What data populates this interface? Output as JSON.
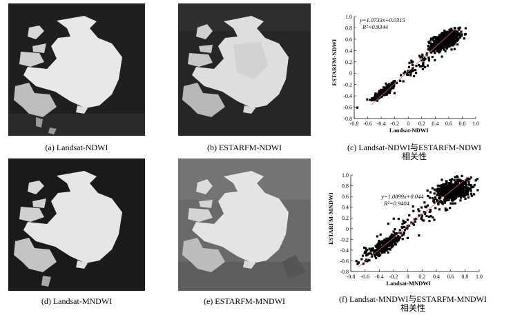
{
  "captions": {
    "a": "(a) Landsat-NDWI",
    "b": "(b) ESTARFM-NDWI",
    "c_line1": "(c) Landsat-NDWI与ESTARFM-NDWI",
    "c_line2": "相关性",
    "d": "(d) Landsat-MNDWI",
    "e": "(e) ESTARFM-MNDWI",
    "f_line1": "(f) Landsat-MNDWI与ESTARFM-MNDWI",
    "f_line2": "相关性"
  },
  "colors": {
    "dark_background_a": "#1f1f1f",
    "dark_background_b": "#262626",
    "gray_background_e": "#6a6a6a",
    "water_bright": "#e8e8e8",
    "points": "#000000",
    "fit_line": "#e06060"
  },
  "chart_data": [
    {
      "type": "scatter",
      "id": "c",
      "xlabel": "Landsat-NDWI",
      "ylabel": "ESTARFM-NDWI",
      "xlim": [
        -0.8,
        1.0
      ],
      "ylim": [
        -0.8,
        1.0
      ],
      "xticks": [
        "-0.8",
        "-0.6",
        "-0.4",
        "-0.2",
        "0",
        "0.2",
        "0.4",
        "0.6",
        "0.8",
        "1.0"
      ],
      "yticks": [
        "-0.8",
        "-0.6",
        "-0.4",
        "-0.2",
        "0",
        "0.2",
        "0.4",
        "0.6",
        "0.8",
        "1.0"
      ],
      "equation": "y=1.0733x+0.0315",
      "r2": "R²=0.9344",
      "fit": {
        "slope": 1.0733,
        "intercept": 0.0315,
        "x_range": [
          -0.55,
          0.7
        ]
      },
      "clusters": [
        {
          "cx": -0.35,
          "cy": -0.32,
          "sx": 0.1,
          "sy": 0.09,
          "n": 170,
          "rho": 0.85
        },
        {
          "cx": 0.55,
          "cy": 0.58,
          "sx": 0.1,
          "sy": 0.08,
          "n": 520,
          "rho": 0.5
        },
        {
          "cx": 0.15,
          "cy": 0.15,
          "sx": 0.2,
          "sy": 0.2,
          "n": 60,
          "rho": 0.9
        }
      ]
    },
    {
      "type": "scatter",
      "id": "f",
      "xlabel": "Landsat-MNDWI",
      "ylabel": "ESTARFM-MNDWI",
      "xlim": [
        -0.8,
        1.0
      ],
      "ylim": [
        -0.8,
        1.0
      ],
      "xticks": [
        "-0.8",
        "-0.6",
        "-0.4",
        "-0.2",
        "0",
        "0.2",
        "0.4",
        "0.6",
        "0.8",
        "1.0"
      ],
      "yticks": [
        "-0.8",
        "-0.6",
        "-0.4",
        "-0.2",
        "0",
        "0.2",
        "0.4",
        "0.6",
        "0.8",
        "1.0"
      ],
      "equation": "y=1.0899x+0.044",
      "r2": "R²=0.9404",
      "fit": {
        "slope": 1.0899,
        "intercept": 0.044,
        "x_range": [
          -0.7,
          0.85
        ]
      },
      "clusters": [
        {
          "cx": -0.35,
          "cy": -0.33,
          "sx": 0.13,
          "sy": 0.12,
          "n": 260,
          "rho": 0.85
        },
        {
          "cx": 0.65,
          "cy": 0.72,
          "sx": 0.12,
          "sy": 0.1,
          "n": 600,
          "rho": 0.4
        },
        {
          "cx": 0.15,
          "cy": 0.2,
          "sx": 0.25,
          "sy": 0.25,
          "n": 90,
          "rho": 0.88
        }
      ]
    }
  ]
}
